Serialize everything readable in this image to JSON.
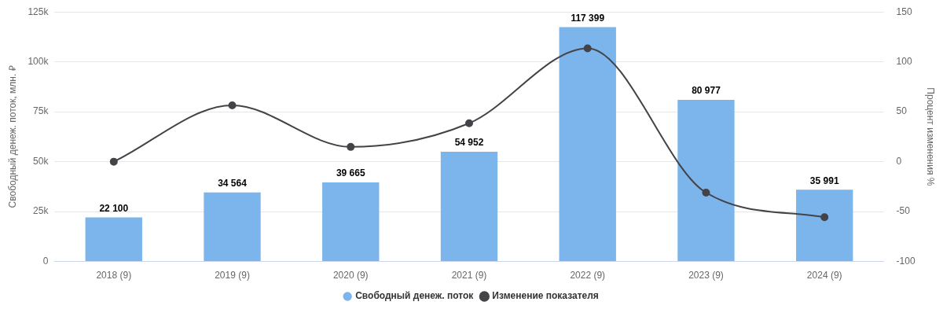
{
  "chart_data": {
    "type": "bar",
    "categories": [
      "2018 (9)",
      "2019 (9)",
      "2020 (9)",
      "2021 (9)",
      "2022 (9)",
      "2023 (9)",
      "2024 (9)"
    ],
    "ylabel": "Свободный денеж. поток, млн. ₽",
    "y2label": "Процент изменения %",
    "ylim": [
      0,
      125000
    ],
    "yticks": [
      0,
      {
        "value": 25000,
        "label": "25k"
      },
      {
        "value": 50000,
        "label": "50k"
      },
      {
        "value": 75000,
        "label": "75k"
      },
      {
        "value": 100000,
        "label": "100k"
      },
      {
        "value": 125000,
        "label": "125k"
      }
    ],
    "y2lim": [
      -100,
      150
    ],
    "y2ticks": [
      -100,
      -50,
      0,
      50,
      100,
      150
    ],
    "grid": "y",
    "legend": "bottom",
    "marker": "circle",
    "series": [
      {
        "name": "Свободный денеж. поток",
        "color": "#7cb5ec",
        "values": [
          22100,
          34564,
          39665,
          54952,
          117399,
          80977,
          35991
        ],
        "value_labels": [
          "22 100",
          "34 564",
          "39 665",
          "54 952",
          "117 399",
          "80 977",
          "35 991"
        ]
      },
      {
        "name": "Изменение показателя",
        "type": "line",
        "axis": "y2",
        "color": "#434348",
        "values": [
          0,
          56.4,
          14.8,
          38.5,
          113.6,
          -31.0,
          -55.6
        ]
      }
    ]
  }
}
